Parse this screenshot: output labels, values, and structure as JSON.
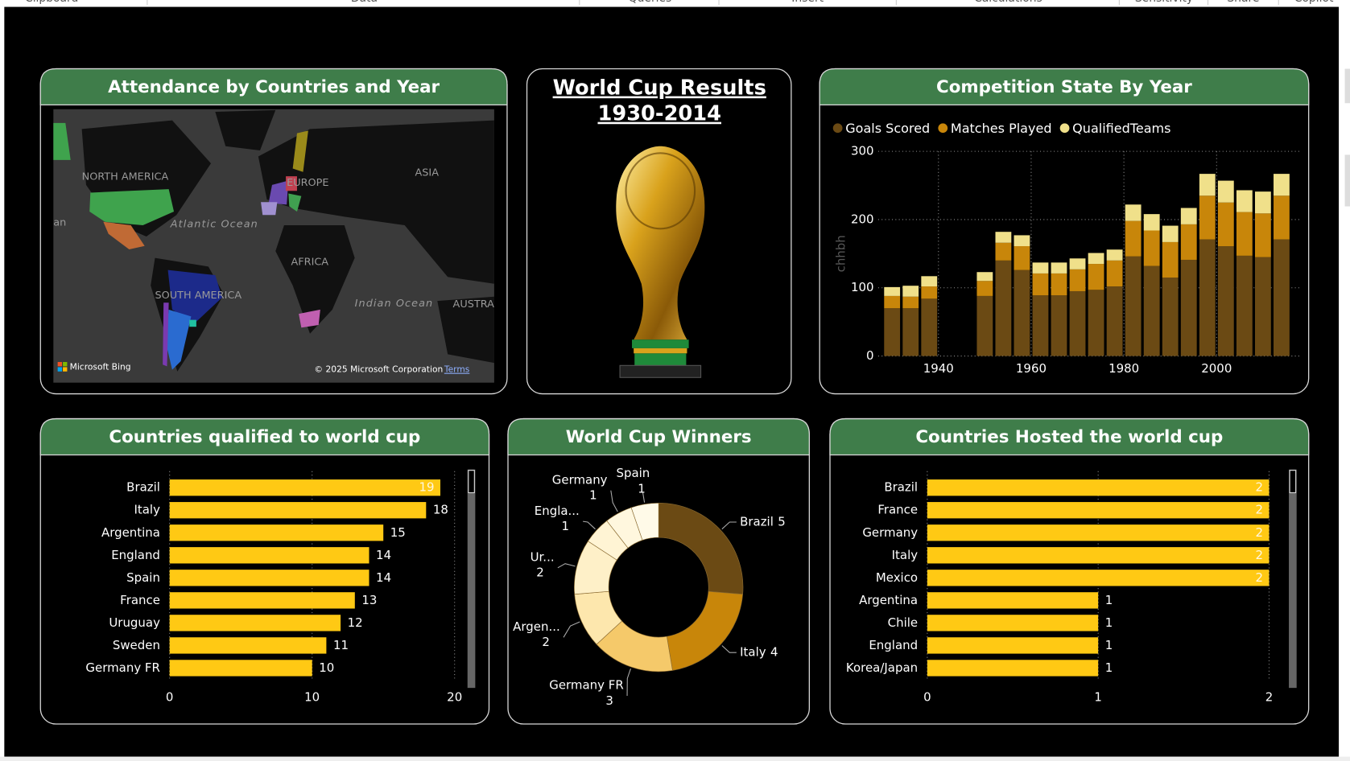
{
  "ribbon": [
    "Clipboard",
    "Data",
    "Queries",
    "Insert",
    "Calculations",
    "Sensitivity",
    "Share",
    "Copilot"
  ],
  "map": {
    "title": "Attendance by Countries and Year",
    "labels": [
      "NORTH AMERICA",
      "EUROPE",
      "ASIA",
      "an",
      "Atlantic Ocean",
      "AFRICA",
      "SOUTH AMERICA",
      "Indian Ocean",
      "AUSTRA"
    ],
    "attribution": "Microsoft Bing",
    "copyright": "© 2025 Microsoft Corporation",
    "terms": "Terms"
  },
  "trophy_card": {
    "title": [
      "World Cup Results",
      "1930-2014"
    ]
  },
  "chart_data": [
    {
      "type": "stacked_bar",
      "title": "Competition State By Year",
      "x": [
        1930,
        1934,
        1938,
        1950,
        1954,
        1958,
        1962,
        1966,
        1970,
        1974,
        1978,
        1982,
        1986,
        1990,
        1994,
        1998,
        2002,
        2006,
        2010,
        2014
      ],
      "series": [
        {
          "name": "Goals Scored",
          "color": "#6b4a14",
          "values": [
            70,
            70,
            84,
            88,
            140,
            126,
            89,
            89,
            95,
            97,
            102,
            146,
            132,
            115,
            141,
            171,
            161,
            147,
            145,
            171
          ]
        },
        {
          "name": "Matches Played",
          "color": "#c8860a",
          "values": [
            18,
            17,
            18,
            22,
            26,
            35,
            32,
            32,
            32,
            38,
            38,
            52,
            52,
            52,
            52,
            64,
            64,
            64,
            64,
            64
          ]
        },
        {
          "name": "QualifiedTeams",
          "color": "#f0e08a",
          "values": [
            13,
            16,
            15,
            13,
            16,
            16,
            16,
            16,
            16,
            16,
            16,
            24,
            24,
            24,
            24,
            32,
            32,
            32,
            32,
            32
          ]
        }
      ],
      "xlim": [
        1927,
        2018
      ],
      "xticks": [
        1940,
        1960,
        1980,
        2000
      ],
      "ylim": [
        0,
        300
      ],
      "yticks": [
        0,
        100,
        200,
        300
      ],
      "y_label": "chhbh",
      "grid": true,
      "legend": "top"
    },
    {
      "type": "hbar",
      "title": "Countries qualified to world cup",
      "categories": [
        "Brazil",
        "Italy",
        "Argentina",
        "England",
        "Spain",
        "France",
        "Uruguay",
        "Sweden",
        "Germany FR"
      ],
      "values": [
        19,
        18,
        15,
        14,
        14,
        13,
        12,
        11,
        10
      ],
      "color": "#ffc914",
      "xlim": [
        0,
        20
      ],
      "xticks": [
        0,
        10,
        20
      ],
      "grid": true
    },
    {
      "type": "donut",
      "title": "World Cup Winners",
      "categories": [
        "Brazil",
        "Italy",
        "Germany FR",
        "Argen...",
        "Ur...",
        "Engla...",
        "Germany",
        "Spain"
      ],
      "values": [
        5,
        4,
        3,
        2,
        2,
        1,
        1,
        1
      ],
      "colors": [
        "#6b4a14",
        "#c8860a",
        "#f5c96a",
        "#fde7ad",
        "#fef0c8",
        "#fff4d4",
        "#fff7de",
        "#fffae8"
      ]
    },
    {
      "type": "hbar",
      "title": "Countries Hosted the world cup",
      "categories": [
        "Brazil",
        "France",
        "Germany",
        "Italy",
        "Mexico",
        "Argentina",
        "Chile",
        "England",
        "Korea/Japan"
      ],
      "values": [
        2,
        2,
        2,
        2,
        2,
        1,
        1,
        1,
        1
      ],
      "color": "#ffc914",
      "xlim": [
        0,
        2
      ],
      "xticks": [
        0,
        1,
        2
      ],
      "grid": true
    }
  ]
}
